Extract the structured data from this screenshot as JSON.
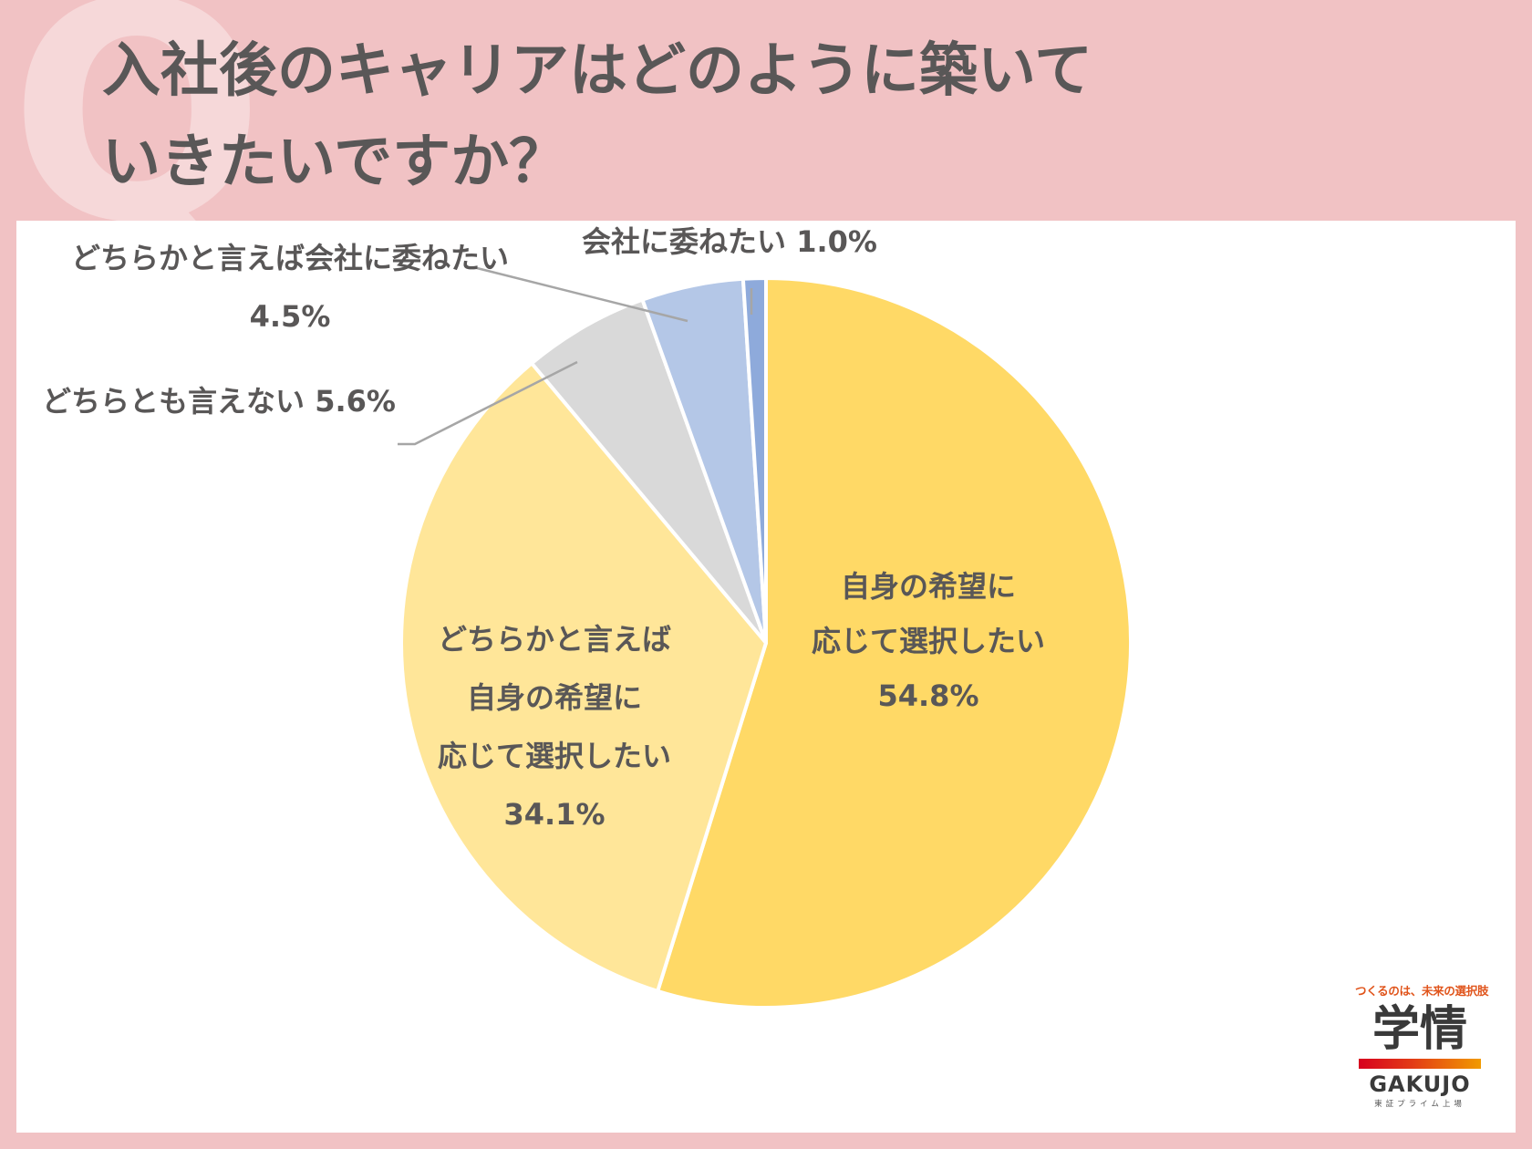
{
  "question_mark": "Q",
  "title": {
    "line1": "入社後のキャリアはどのように築いて",
    "line2": "いきたいですか？"
  },
  "chart_data": {
    "type": "pie",
    "start_angle_deg": 0,
    "direction": "clockwise",
    "slices": [
      {
        "label_lines": [
          "自身の希望に",
          "応じて選択したい"
        ],
        "value_text": "54.8%",
        "value": 54.8,
        "color": "#ffd966"
      },
      {
        "label_lines": [
          "どちらかと言えば",
          "自身の希望に",
          "応じて選択したい"
        ],
        "value_text": "34.1%",
        "value": 34.1,
        "color": "#ffe699"
      },
      {
        "label_lines": [
          "どちらとも言えない"
        ],
        "value_text": "5.6%",
        "value": 5.6,
        "color": "#d9d9d9"
      },
      {
        "label_lines": [
          "どちらかと言えば会社に委ねたい"
        ],
        "value_text": "4.5%",
        "value": 4.5,
        "color": "#b4c7e7"
      },
      {
        "label_lines": [
          "会社に委ねたい"
        ],
        "value_text": "1.0%",
        "value": 1.0,
        "color": "#8eaadb"
      }
    ]
  },
  "logo": {
    "tagline": "つくるのは、未来の選択肢",
    "kanji": "学情",
    "english": "GAKUJO",
    "listed": "東証プライム上場",
    "colors": {
      "tagline": "#e0541b",
      "bar_start": "#d7001e",
      "bar_end": "#f19a00"
    }
  },
  "colors": {
    "background": "#f1c2c4",
    "title_text": "#595757",
    "panel": "#ffffff"
  }
}
